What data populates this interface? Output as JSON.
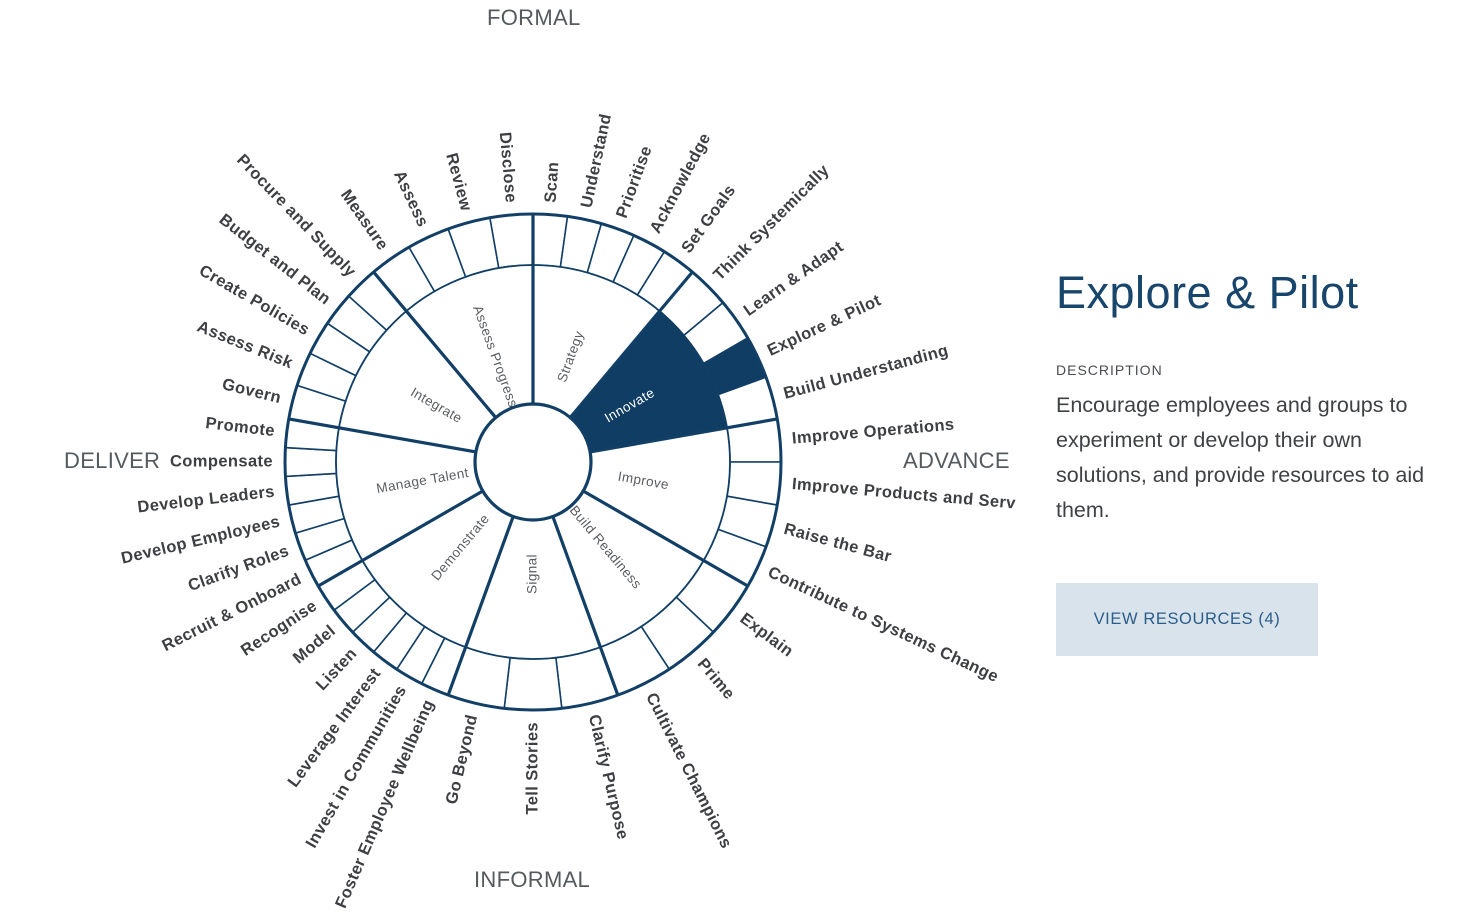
{
  "axes": {
    "top": "FORMAL",
    "bottom": "INFORMAL",
    "left": "DELIVER",
    "right": "ADVANCE"
  },
  "colors": {
    "primary": "#0f3d63",
    "line": "#123f66",
    "active_fill": "#0f3d63",
    "button_bg": "#d8e3ec",
    "button_text": "#2b5d8a",
    "title": "#17456b"
  },
  "wheel": {
    "selected_segment": "Innovate",
    "selected_cell": "Explore & Pilot",
    "segments": [
      {
        "name": "Strategy",
        "cells": [
          "Scan",
          "Understand",
          "Prioritise",
          "Acknowledge",
          "Set Goals"
        ]
      },
      {
        "name": "Innovate",
        "cells": [
          "Think Systemically",
          "Learn & Adapt",
          "Explore & Pilot",
          "Build Understanding"
        ]
      },
      {
        "name": "Improve",
        "cells": [
          "Improve Operations",
          "Improve Products and Serv",
          "Raise the Bar",
          "Contribute to Systems Change"
        ]
      },
      {
        "name": "Build Readiness",
        "cells": [
          "Explain",
          "Prime",
          "Cultivate Champions"
        ]
      },
      {
        "name": "Signal",
        "cells": [
          "Clarify Purpose",
          "Tell Stories",
          "Go Beyond"
        ]
      },
      {
        "name": "Demonstrate",
        "cells": [
          "Foster Employee Wellbeing",
          "Invest in Communities",
          "Leverage Interest",
          "Listen",
          "Model",
          "Recognise"
        ]
      },
      {
        "name": "Manage Talent",
        "cells": [
          "Recruit & Onboard",
          "Clarify Roles",
          "Develop Employees",
          "Develop Leaders",
          "Compensate",
          "Promote"
        ]
      },
      {
        "name": "Integrate",
        "cells": [
          "Govern",
          "Assess Risk",
          "Create Policies",
          "Budget and Plan",
          "Procure and Supply"
        ]
      },
      {
        "name": "Assess Progress",
        "cells": [
          "Measure",
          "Assess",
          "Review",
          "Disclose"
        ]
      }
    ]
  },
  "detail": {
    "title": "Explore & Pilot",
    "section_label": "DESCRIPTION",
    "description": "Encourage employees and groups to experiment or develop their own solutions, and provide resources to aid them.",
    "button_label": "VIEW RESOURCES (4)",
    "resource_count": 4
  }
}
